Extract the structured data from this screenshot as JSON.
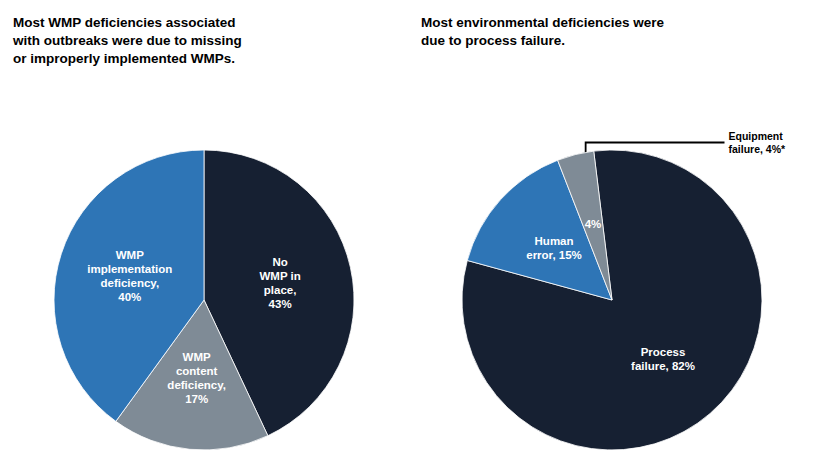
{
  "chart_data": [
    {
      "type": "pie",
      "title": "Most WMP deficiencies associated\nwith outbreaks were due to missing\nor improperly implemented WMPs.",
      "values": [
        43,
        17,
        40
      ],
      "value_labels": [
        "No\nWMP in\nplace,\n43%",
        "WMP\ncontent\ndeficiency,\n17%",
        "WMP\nimplementation\ndeficiency,\n40%"
      ],
      "colors": [
        "#162032",
        "#7f8b96",
        "#2e75b6"
      ],
      "data_labels": true
    },
    {
      "type": "pie",
      "title": "Most environmental deficiencies were\ndue to process failure.",
      "values": [
        82,
        15,
        4
      ],
      "value_labels": [
        "Process\nfailure, 82%",
        "Human\nerror, 15%",
        "4%"
      ],
      "colors": [
        "#162032",
        "#2e75b6",
        "#7f8b96"
      ],
      "data_labels": true,
      "annotation": "Equipment\nfailure, 4%*"
    }
  ]
}
